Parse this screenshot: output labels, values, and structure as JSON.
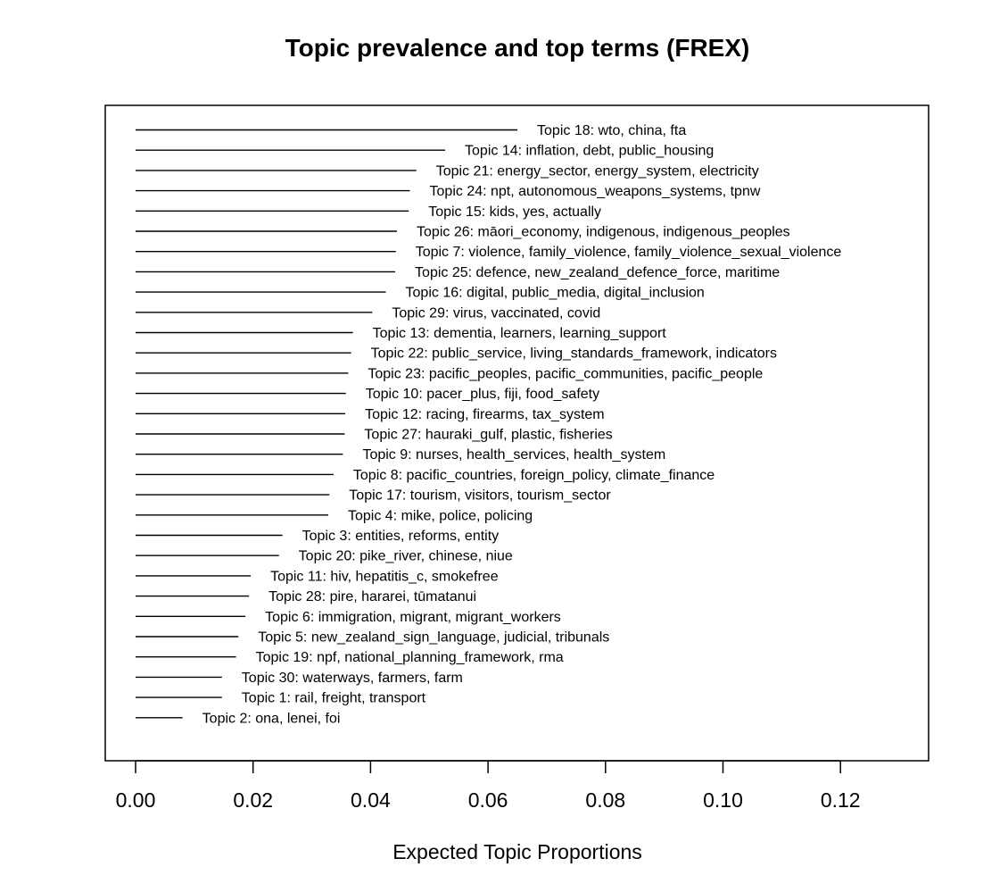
{
  "chart_data": {
    "type": "bar",
    "title": "Topic prevalence and top terms (FREX)",
    "xlabel": "Expected Topic Proportions",
    "ylabel": "",
    "xlim": [
      0.0,
      0.13
    ],
    "xticks": [
      "0.00",
      "0.02",
      "0.04",
      "0.06",
      "0.08",
      "0.10",
      "0.12"
    ],
    "orientation": "horizontal",
    "grid": false,
    "categories": [
      "Topic 18: wto, china, fta",
      "Topic 14: inflation, debt, public_housing",
      "Topic 21: energy_sector, energy_system, electricity",
      "Topic 24: npt, autonomous_weapons_systems, tpnw",
      "Topic 15: kids, yes, actually",
      "Topic 26: māori_economy, indigenous, indigenous_peoples",
      "Topic 7: violence, family_violence, family_violence_sexual_violence",
      "Topic 25: defence, new_zealand_defence_force, maritime",
      "Topic 16: digital, public_media, digital_inclusion",
      "Topic 29: virus, vaccinated, covid",
      "Topic 13: dementia, learners, learning_support",
      "Topic 22: public_service, living_standards_framework, indicators",
      "Topic 23: pacific_peoples, pacific_communities, pacific_people",
      "Topic 10: pacer_plus, fiji, food_safety",
      "Topic 12: racing, firearms, tax_system",
      "Topic 27: hauraki_gulf, plastic, fisheries",
      "Topic 9: nurses, health_services, health_system",
      "Topic 8: pacific_countries, foreign_policy, climate_finance",
      "Topic 17: tourism, visitors, tourism_sector",
      "Topic 4: mike, police, policing",
      "Topic 3: entities, reforms, entity",
      "Topic 20: pike_river, chinese, niue",
      "Topic 11: hiv, hepatitis_c, smokefree",
      "Topic 28: pire, hararei, tūmatanui",
      "Topic 6: immigration, migrant, migrant_workers",
      "Topic 5: new_zealand_sign_language, judicial, tribunals",
      "Topic 19: npf, national_planning_framework, rma",
      "Topic 30: waterways, farmers, farm",
      "Topic 1: rail, freight, transport",
      "Topic 2: ona, lenei, foi"
    ],
    "values": [
      0.065,
      0.0527,
      0.0478,
      0.0467,
      0.0465,
      0.0445,
      0.0443,
      0.0442,
      0.0426,
      0.0403,
      0.037,
      0.0367,
      0.0362,
      0.0358,
      0.0357,
      0.0356,
      0.0353,
      0.0337,
      0.033,
      0.0328,
      0.025,
      0.0244,
      0.0196,
      0.0193,
      0.0187,
      0.0175,
      0.0171,
      0.0147,
      0.0147,
      0.008
    ]
  }
}
